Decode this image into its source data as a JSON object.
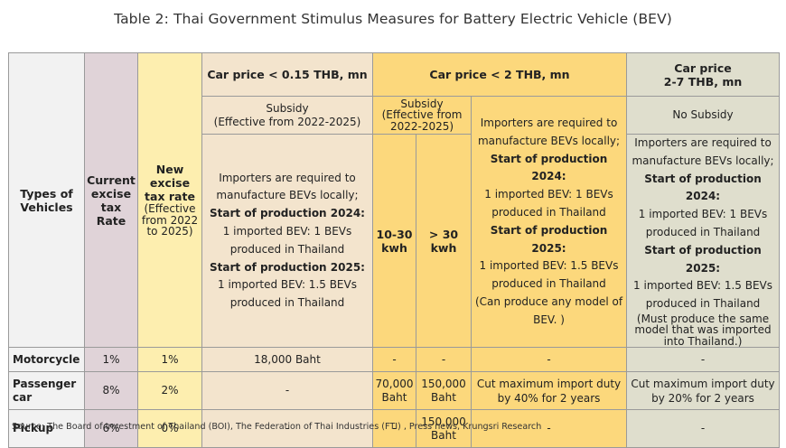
{
  "title": "Table 2: Thai Government Stimulus Measures for Battery Electric Vehicle (BEV)",
  "headers": {
    "types_of_vehicles": "Types of Vehicles",
    "current_excise_tax_rate": "Current excise tax Rate",
    "new_excise_tax_rate": "New excise tax rate",
    "new_excise_effective": "(Effective from 2022 to 2025)",
    "group_low": "Car price < 0.15 THB, mn",
    "group_mid": "Car price < 2 THB, mn",
    "group_high_line1": "Car price",
    "group_high_line2": "2-7 THB, mn",
    "subsidy_label": "Subsidy",
    "subsidy_effective": "(Effective from 2022-2025)",
    "no_subsidy": "No Subsidy",
    "range_10_30": "10-30 kwh",
    "range_gt_30": "> 30 kwh"
  },
  "conditions": {
    "low": {
      "intro": "Importers are required to manufacture BEVs locally;",
      "start_2024": "Start of production 2024:",
      "ratio_2024": "1 imported BEV: 1 BEVs produced in Thailand",
      "start_2025": "Start of production 2025:",
      "ratio_2025": "1 imported BEV: 1.5 BEVs produced in Thailand"
    },
    "mid": {
      "intro": "Importers are required to manufacture BEVs locally;",
      "start_2024": "Start of production 2024:",
      "ratio_2024": "1 imported BEV: 1 BEVs produced in Thailand",
      "start_2025": "Start of production 2025:",
      "ratio_2025": "1 imported BEV: 1.5 BEVs produced in Thailand",
      "note": "(Can produce any model of BEV. )"
    },
    "high": {
      "intro": "Importers are required to manufacture BEVs locally;",
      "start_2024": "Start of production 2024:",
      "ratio_2024": "1 imported BEV: 1 BEVs produced in Thailand",
      "start_2025": "Start of production 2025:",
      "ratio_2025": "1 imported BEV: 1.5 BEVs produced in Thailand",
      "note": "(Must produce the same model that was imported into Thailand.)"
    }
  },
  "rows": [
    {
      "vehicle": "Motorcycle",
      "current": "1%",
      "new": "1%",
      "low": "18,000 Baht",
      "mid_10_30": "-",
      "mid_gt_30": "-",
      "mid_import": "-",
      "high": "-"
    },
    {
      "vehicle": "Passenger car",
      "current": "8%",
      "new": "2%",
      "low": "-",
      "mid_10_30": "70,000 Baht",
      "mid_gt_30": "150,000 Baht",
      "mid_import": "Cut maximum import duty by 40% for 2 years",
      "high": "Cut maximum import duty by 20% for 2 years"
    },
    {
      "vehicle": "Pickup",
      "current": "6%",
      "new": "0%",
      "low": "-",
      "mid_10_30": "-",
      "mid_gt_30": "150,000 Baht",
      "mid_import": "-",
      "high": "-"
    }
  ],
  "source": "Source: The Board of Investment of Thailand (BOI), The Federation of Thai Industries (FTI) , Press news, Krungsri Research",
  "colors": {
    "col_types": "#f2f2f2",
    "col_current": "#e0d3d8",
    "col_new": "#fdeeaf",
    "group_low": "#f3e4cd",
    "group_mid": "#fcd87c",
    "group_high": "#dfdecd"
  }
}
